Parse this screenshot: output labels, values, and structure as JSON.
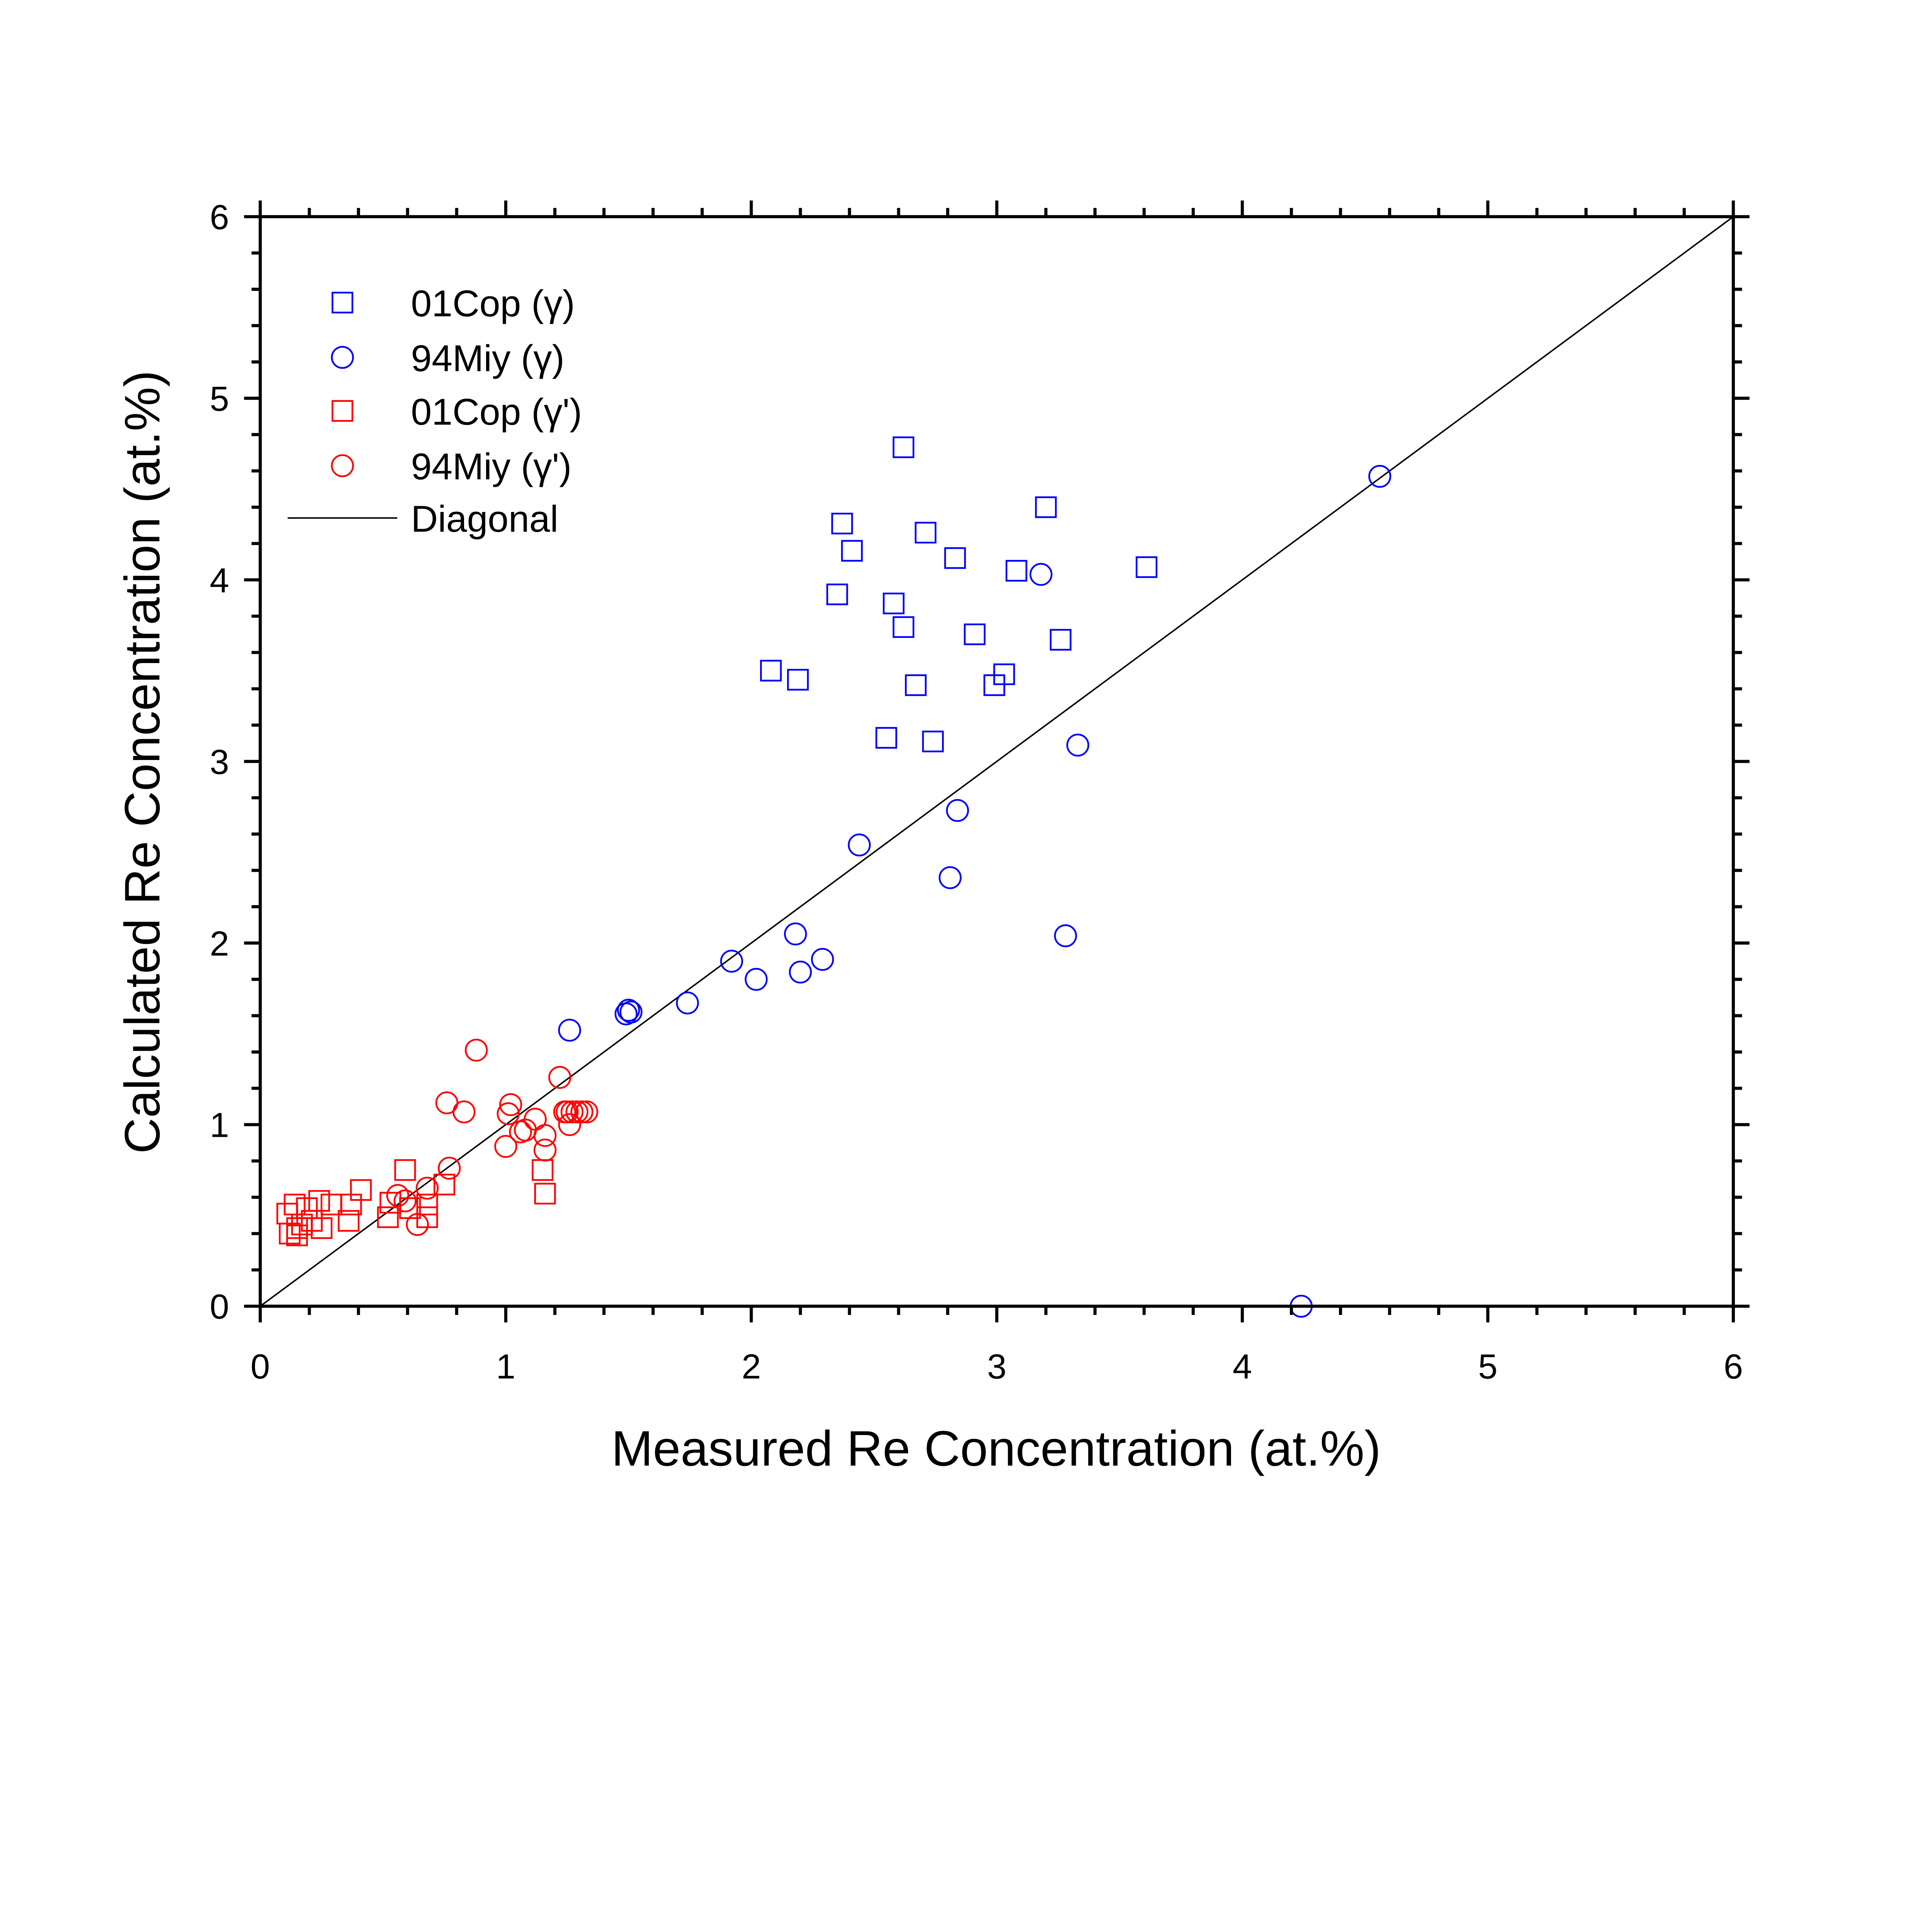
{
  "chart_data": {
    "type": "scatter",
    "title": "",
    "xlabel": "Measured Re Concentration (at.%)",
    "ylabel": "Calculated Re Concentration (at.%)",
    "xlim": [
      0,
      6
    ],
    "ylim": [
      0,
      6
    ],
    "xticks": [
      "0",
      "1",
      "2",
      "3",
      "4",
      "5",
      "6"
    ],
    "yticks": [
      "0",
      "1",
      "2",
      "3",
      "4",
      "5",
      "6"
    ],
    "minor_tick_step": 0.2,
    "grid": false,
    "legend_position": "top-left",
    "series": [
      {
        "name": "01Cop (γ)",
        "marker": "square",
        "color": "#0000ff",
        "points": [
          [
            2.62,
            4.73
          ],
          [
            2.37,
            4.31
          ],
          [
            2.41,
            4.16
          ],
          [
            2.71,
            4.26
          ],
          [
            3.2,
            4.4
          ],
          [
            2.83,
            4.12
          ],
          [
            3.08,
            4.05
          ],
          [
            3.61,
            4.07
          ],
          [
            2.35,
            3.92
          ],
          [
            2.58,
            3.87
          ],
          [
            2.62,
            3.74
          ],
          [
            2.91,
            3.7
          ],
          [
            3.26,
            3.67
          ],
          [
            2.08,
            3.5
          ],
          [
            2.19,
            3.45
          ],
          [
            2.67,
            3.42
          ],
          [
            3.03,
            3.48
          ],
          [
            2.99,
            3.42
          ],
          [
            2.55,
            3.13
          ],
          [
            2.74,
            3.11
          ]
        ]
      },
      {
        "name": "94Miy (γ)",
        "marker": "circle",
        "color": "#0000ff",
        "points": [
          [
            4.56,
            4.57
          ],
          [
            3.18,
            4.03
          ],
          [
            3.33,
            3.09
          ],
          [
            2.84,
            2.73
          ],
          [
            2.44,
            2.54
          ],
          [
            2.81,
            2.36
          ],
          [
            3.28,
            2.04
          ],
          [
            2.18,
            2.05
          ],
          [
            2.29,
            1.91
          ],
          [
            1.92,
            1.9
          ],
          [
            2.2,
            1.84
          ],
          [
            2.02,
            1.8
          ],
          [
            1.74,
            1.67
          ],
          [
            1.5,
            1.63
          ],
          [
            1.51,
            1.62
          ],
          [
            1.49,
            1.61
          ],
          [
            1.26,
            1.52
          ],
          [
            4.24,
            0.0
          ]
        ]
      },
      {
        "name": "01Cop (γ')",
        "marker": "square",
        "color": "#ff0000",
        "points": [
          [
            0.59,
            0.75
          ],
          [
            1.15,
            0.75
          ],
          [
            1.16,
            0.62
          ],
          [
            0.41,
            0.64
          ],
          [
            0.75,
            0.67
          ],
          [
            0.53,
            0.57
          ],
          [
            0.61,
            0.54
          ],
          [
            0.68,
            0.56
          ],
          [
            0.52,
            0.49
          ],
          [
            0.68,
            0.49
          ],
          [
            0.11,
            0.51
          ],
          [
            0.14,
            0.56
          ],
          [
            0.24,
            0.58
          ],
          [
            0.29,
            0.56
          ],
          [
            0.19,
            0.54
          ],
          [
            0.37,
            0.56
          ],
          [
            0.36,
            0.47
          ],
          [
            0.21,
            0.47
          ],
          [
            0.15,
            0.43
          ],
          [
            0.12,
            0.4
          ],
          [
            0.15,
            0.39
          ],
          [
            0.25,
            0.43
          ],
          [
            0.17,
            0.45
          ]
        ]
      },
      {
        "name": "94Miy (γ')",
        "marker": "circle",
        "color": "#ff0000",
        "points": [
          [
            0.88,
            1.41
          ],
          [
            1.22,
            1.26
          ],
          [
            0.76,
            1.12
          ],
          [
            0.83,
            1.07
          ],
          [
            1.02,
            1.11
          ],
          [
            1.01,
            1.06
          ],
          [
            1.12,
            1.03
          ],
          [
            1.08,
            0.97
          ],
          [
            1.06,
            0.96
          ],
          [
            1.24,
            1.07
          ],
          [
            1.25,
            1.07
          ],
          [
            1.27,
            1.07
          ],
          [
            1.29,
            1.07
          ],
          [
            1.31,
            1.07
          ],
          [
            1.33,
            1.07
          ],
          [
            1.26,
            1.0
          ],
          [
            1.16,
            0.94
          ],
          [
            1.16,
            0.86
          ],
          [
            1.0,
            0.88
          ],
          [
            0.77,
            0.76
          ],
          [
            0.68,
            0.65
          ],
          [
            0.59,
            0.58
          ],
          [
            0.64,
            0.45
          ],
          [
            0.56,
            0.61
          ]
        ]
      }
    ],
    "lines": [
      {
        "name": "Diagonal",
        "color": "#000000",
        "points": [
          [
            0,
            0
          ],
          [
            6,
            6
          ]
        ]
      }
    ]
  }
}
